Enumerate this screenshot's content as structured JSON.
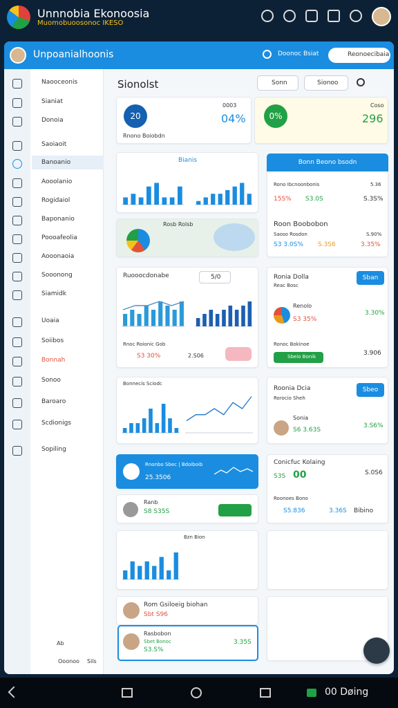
{
  "status_bar": {
    "title": "Unnnobia Ekonoosia",
    "subtitle": "Muomobuoosonoc IKESO"
  },
  "app_bar": {
    "title": "Unpoanialhoonis",
    "search": "Doonoc Bsiat",
    "profile": "Reonoecibaia"
  },
  "nav": {
    "items": [
      "Naooceonis",
      "Sianiat",
      "Donoia",
      "Saoiaoit",
      "Banoanio",
      "Aooolanio",
      "Rogidaiol",
      "Baponanio",
      "Poooafeolia",
      "Aooonaoia",
      "Sooonong",
      "Siamidk",
      "Uoaia",
      "Soiibos",
      "Bonnah",
      "Sonoo",
      "Baroaro",
      "Scdionigs",
      "Sopiling"
    ],
    "footer": [
      "Ab",
      "Ooonoo",
      "Sils"
    ]
  },
  "main": {
    "title": "Sionolst",
    "buttons": [
      "Sonn",
      "Sionoo"
    ]
  },
  "kpis": [
    {
      "badge": "20",
      "caption": "Rnono Boiobdn",
      "label": "0003",
      "value": "04%"
    },
    {
      "badge": "0%",
      "label": "Coso",
      "value": "296"
    }
  ],
  "cards": {
    "bars1": {
      "title": "Bianis",
      "ylim": [
        0,
        8
      ],
      "a": [
        2,
        3,
        2,
        5,
        6,
        2,
        2,
        5
      ],
      "b": [
        1,
        2,
        3,
        3,
        4,
        5,
        6,
        3
      ]
    },
    "map": {
      "label": "Rosb Rolsb"
    },
    "trend": {
      "title": "Ruooocdonabe",
      "chip": "5/0",
      "caption": "Rnoc Roionic Gob",
      "value": "S3 30%",
      "value2": "2.S06",
      "ylim": [
        0,
        8
      ],
      "a": [
        3,
        4,
        3,
        5,
        4,
        6,
        5,
        4,
        6
      ],
      "line": [
        4,
        5,
        5,
        6,
        5,
        6
      ],
      "b": [
        2,
        3,
        4,
        3,
        4,
        5,
        4,
        5,
        6
      ]
    },
    "sales": {
      "title": "Bonnecis Sciodc",
      "ylim": [
        0,
        8
      ],
      "a": [
        1,
        2,
        2,
        3,
        5,
        2,
        6,
        3,
        1
      ],
      "line": [
        2,
        3,
        3,
        4,
        3,
        5,
        4,
        6
      ]
    },
    "promo": {
      "title": "Rnonbo Sbec | Bdoiboib",
      "value": "25.3506"
    },
    "rank": {
      "title": "Ranb",
      "value": "S8 S35S"
    },
    "bars4": {
      "title": "Bzn Bion",
      "ylim": [
        0,
        8
      ],
      "a": [
        2,
        4,
        3,
        4,
        3,
        5,
        2,
        6
      ]
    },
    "person1": {
      "title": "Rom Gsiloeig biohan",
      "value": "Sbt S96"
    },
    "person2": {
      "title": "Rasbobon",
      "subtitle": "Sbet Bonoc",
      "value": "S3.S%",
      "value2": "3.35S"
    }
  },
  "panels": [
    {
      "title": "Bonn Beono bsodn",
      "rows": [
        [
          "Rono Ibcnoonbonis",
          "5.36"
        ],
        [
          "15S%",
          "S3.0S",
          "S.3S%"
        ]
      ],
      "sub": "Roon Boobobon",
      "rows2": [
        [
          "Saoso Rosdon",
          "S.90%"
        ],
        [
          "S3 3.0S%",
          "S.3S6",
          "3.35%"
        ]
      ]
    },
    {
      "title": "Ronia Dolla",
      "button": "Sban",
      "subtitle": "Reac Bosc",
      "row": [
        "Renolo",
        "S3 35%",
        "3.30%"
      ],
      "row2": [
        "Ronoc Bokinoe",
        "Sbeio Bonik",
        "3.906"
      ]
    },
    {
      "title": "Roonia Dcia",
      "button": "Sbeo",
      "subtitle": "Rorocio Sheh",
      "row": [
        "Sonia",
        "S6 3.63S",
        "3.S6%"
      ]
    },
    {
      "title": "Conicfuc Kolaing",
      "row": [
        "S3S",
        "00",
        "S.0S6"
      ],
      "row2": [
        "Roonoes Bono",
        "S5.836",
        "3.36S",
        "Bibino"
      ]
    }
  ],
  "bottom_bar": {
    "label": "00 Døing"
  }
}
